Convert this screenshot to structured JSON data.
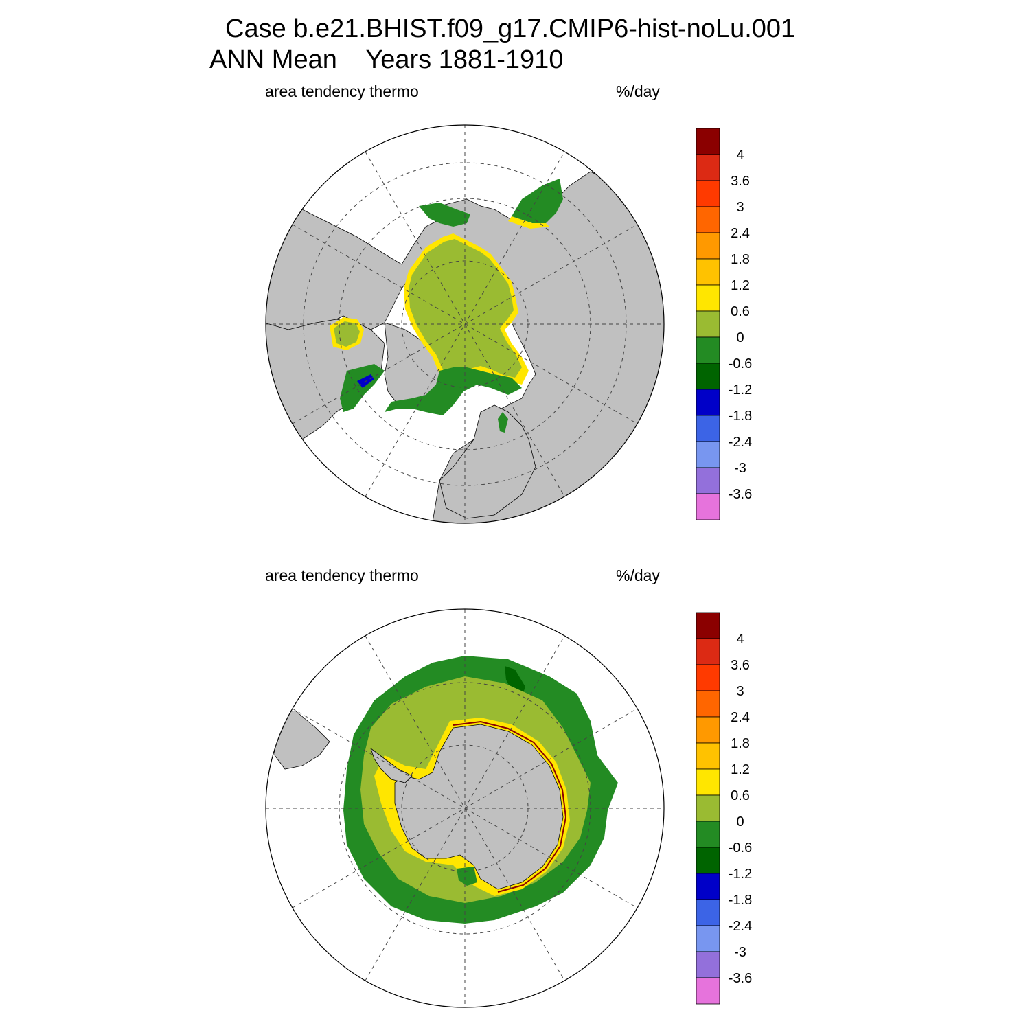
{
  "header": {
    "case_line": "Case b.e21.BHIST.f09_g17.CMIP6-hist-noLu.001",
    "period_line": "ANN Mean    Years 1881-1910"
  },
  "panels": [
    {
      "id": "north",
      "variable": "area tendency thermo",
      "units": "%/day"
    },
    {
      "id": "south",
      "variable": "area tendency thermo",
      "units": "%/day"
    }
  ],
  "colorbar": {
    "labels": [
      "4",
      "3.6",
      "3",
      "2.4",
      "1.8",
      "1.2",
      "0.6",
      "0",
      "-0.6",
      "-1.2",
      "-1.8",
      "-2.4",
      "-3",
      "-3.6"
    ],
    "colors": [
      "#8b0000",
      "#dc2a14",
      "#ff3a00",
      "#ff6600",
      "#ff9900",
      "#ffc200",
      "#ffe600",
      "#9abb32",
      "#238b23",
      "#006400",
      "#0000c8",
      "#3c64e6",
      "#7896f0",
      "#9370db",
      "#e673dc"
    ]
  },
  "map_colors": {
    "land": "#c0c0c0",
    "ice_interior": "#9abb32",
    "ice_edge_outer": "#238b23",
    "ice_edge_dark": "#006400",
    "ice_growth_margin": "#ffe600",
    "ice_growth_strong": "#ffc200",
    "coast_max": "#8b0000",
    "negative_band": "#0000c8",
    "ocean_open": "#ffffff"
  }
}
